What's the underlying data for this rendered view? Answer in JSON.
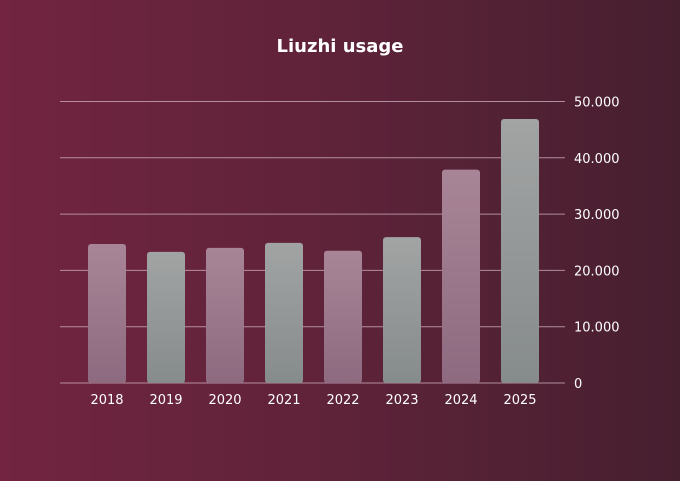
{
  "chart_data": {
    "type": "bar",
    "title": "Liuzhi usage",
    "categories": [
      "2018",
      "2019",
      "2020",
      "2021",
      "2022",
      "2023",
      "2024",
      "2025"
    ],
    "values": [
      24700,
      23300,
      24000,
      24900,
      23500,
      25900,
      37900,
      46900
    ],
    "ylim": [
      0,
      50000
    ],
    "yticks": [
      "0",
      "10.000",
      "20.000",
      "30.000",
      "40.000",
      "50.000"
    ],
    "ytick_values": [
      0,
      10000,
      20000,
      30000,
      40000,
      50000
    ],
    "grid": true,
    "y_axis_side": "right",
    "colors": {
      "bar_a_top": "#a88596",
      "bar_a_bottom": "#8e6a80",
      "bar_b_top": "#a2a4a4",
      "bar_b_bottom": "#868b8b",
      "grid": "#c9a9b8",
      "text": "#ffffff"
    }
  }
}
